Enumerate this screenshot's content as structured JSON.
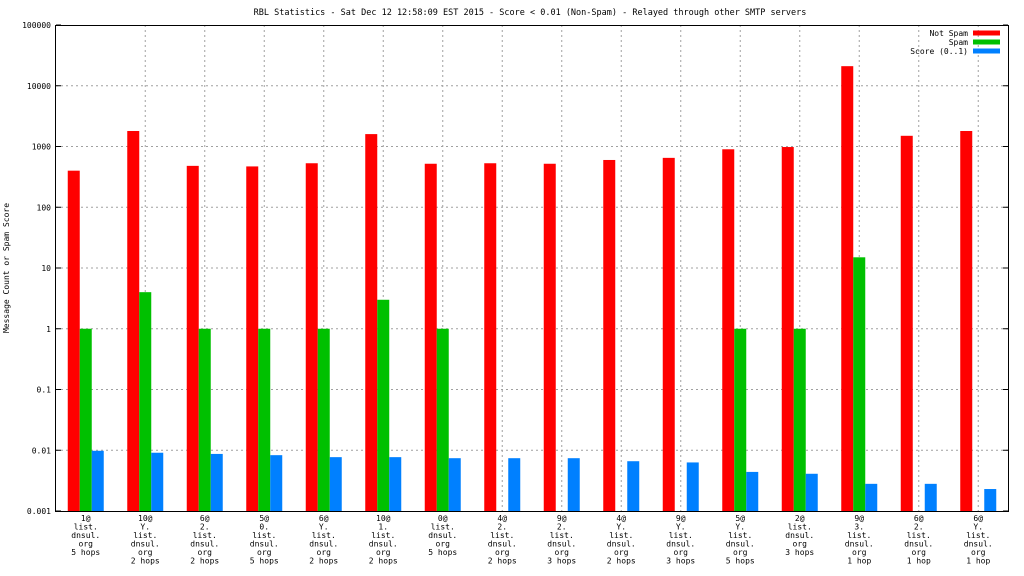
{
  "chart_data": {
    "type": "bar",
    "title": "RBL Statistics - Sat Dec 12 12:58:09 EST 2015 - Score < 0.01 (Non-Spam) - Relayed through other SMTP servers",
    "xlabel": "",
    "ylabel": "Message Count or Spam Score",
    "y_scale": "log",
    "ylim": [
      0.001,
      100000
    ],
    "y_ticks": [
      "0.001",
      "0.01",
      "0.1",
      "1",
      "10",
      "100",
      "1000",
      "10000",
      "100000"
    ],
    "grid": true,
    "legend_position": "top-right",
    "categories": [
      [
        "1@",
        "list.",
        "dnsul.",
        "org",
        "5 hops"
      ],
      [
        "10@",
        "Y.",
        "list.",
        "dnsul.",
        "org",
        "2 hops"
      ],
      [
        "6@",
        "2.",
        "list.",
        "dnsul.",
        "org",
        "2 hops"
      ],
      [
        "5@",
        "0.",
        "list.",
        "dnsul.",
        "org",
        "5 hops"
      ],
      [
        "6@",
        "Y.",
        "list.",
        "dnsul.",
        "org",
        "2 hops"
      ],
      [
        "10@",
        "1.",
        "list.",
        "dnsul.",
        "org",
        "2 hops"
      ],
      [
        "0@",
        "list.",
        "dnsul.",
        "org",
        "5 hops"
      ],
      [
        "4@",
        "2.",
        "list.",
        "dnsul.",
        "org",
        "2 hops"
      ],
      [
        "9@",
        "2.",
        "list.",
        "dnsul.",
        "org",
        "3 hops"
      ],
      [
        "4@",
        "Y.",
        "list.",
        "dnsul.",
        "org",
        "2 hops"
      ],
      [
        "9@",
        "Y.",
        "list.",
        "dnsul.",
        "org",
        "3 hops"
      ],
      [
        "5@",
        "Y.",
        "list.",
        "dnsul.",
        "org",
        "5 hops"
      ],
      [
        "2@",
        "list.",
        "dnsul.",
        "org",
        "3 hops"
      ],
      [
        "9@",
        "3.",
        "list.",
        "dnsul.",
        "org",
        "1 hop"
      ],
      [
        "6@",
        "2.",
        "list.",
        "dnsul.",
        "org",
        "1 hop"
      ],
      [
        "6@",
        "Y.",
        "list.",
        "dnsul.",
        "org",
        "1 hop"
      ]
    ],
    "series": [
      {
        "name": "Not Spam",
        "color": "#ff0000",
        "values": [
          400,
          1800,
          480,
          470,
          530,
          1600,
          520,
          530,
          520,
          600,
          650,
          900,
          980,
          21000,
          1500,
          1800
        ]
      },
      {
        "name": "Spam",
        "color": "#00c000",
        "values": [
          1,
          4,
          1,
          1,
          1,
          3,
          1,
          null,
          null,
          null,
          null,
          1,
          1,
          15,
          null,
          null
        ]
      },
      {
        "name": "Score (0..1)",
        "color": "#0080ff",
        "values": [
          0.0098,
          0.0091,
          0.0087,
          0.0083,
          0.0077,
          0.0077,
          0.0074,
          0.0074,
          0.0074,
          0.0066,
          0.0063,
          0.0044,
          0.0041,
          0.0028,
          0.0028,
          0.0023
        ]
      }
    ]
  }
}
